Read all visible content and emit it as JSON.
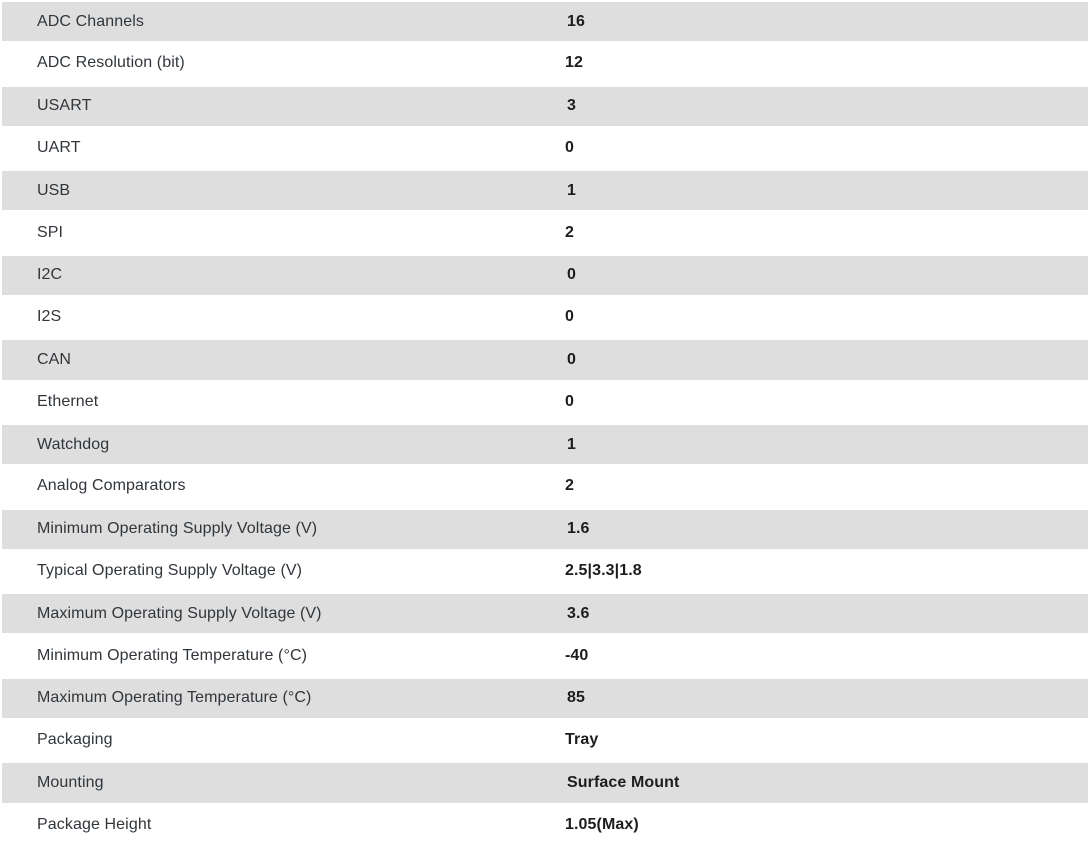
{
  "table": {
    "rows": [
      {
        "label": "ADC Channels",
        "value": "16"
      },
      {
        "label": "ADC Resolution (bit)",
        "value": "12"
      },
      {
        "label": "USART",
        "value": "3"
      },
      {
        "label": "UART",
        "value": "0"
      },
      {
        "label": "USB",
        "value": "1"
      },
      {
        "label": "SPI",
        "value": "2"
      },
      {
        "label": "I2C",
        "value": "0"
      },
      {
        "label": "I2S",
        "value": "0"
      },
      {
        "label": "CAN",
        "value": "0"
      },
      {
        "label": "Ethernet",
        "value": "0"
      },
      {
        "label": "Watchdog",
        "value": "1"
      },
      {
        "label": "Analog Comparators",
        "value": "2"
      },
      {
        "label": "Minimum Operating Supply Voltage (V)",
        "value": "1.6"
      },
      {
        "label": "Typical Operating Supply Voltage (V)",
        "value": "2.5|3.3|1.8"
      },
      {
        "label": "Maximum Operating Supply Voltage (V)",
        "value": "3.6"
      },
      {
        "label": "Minimum Operating Temperature (°C)",
        "value": "-40"
      },
      {
        "label": "Maximum Operating Temperature (°C)",
        "value": "85"
      },
      {
        "label": "Packaging",
        "value": "Tray"
      },
      {
        "label": "Mounting",
        "value": "Surface Mount"
      },
      {
        "label": "Package Height",
        "value": "1.05(Max)"
      }
    ]
  },
  "colors": {
    "stripe": "#dedede",
    "row_alt": "#ffffff",
    "label_text": "#31363b",
    "value_text": "#1d1d1d"
  }
}
